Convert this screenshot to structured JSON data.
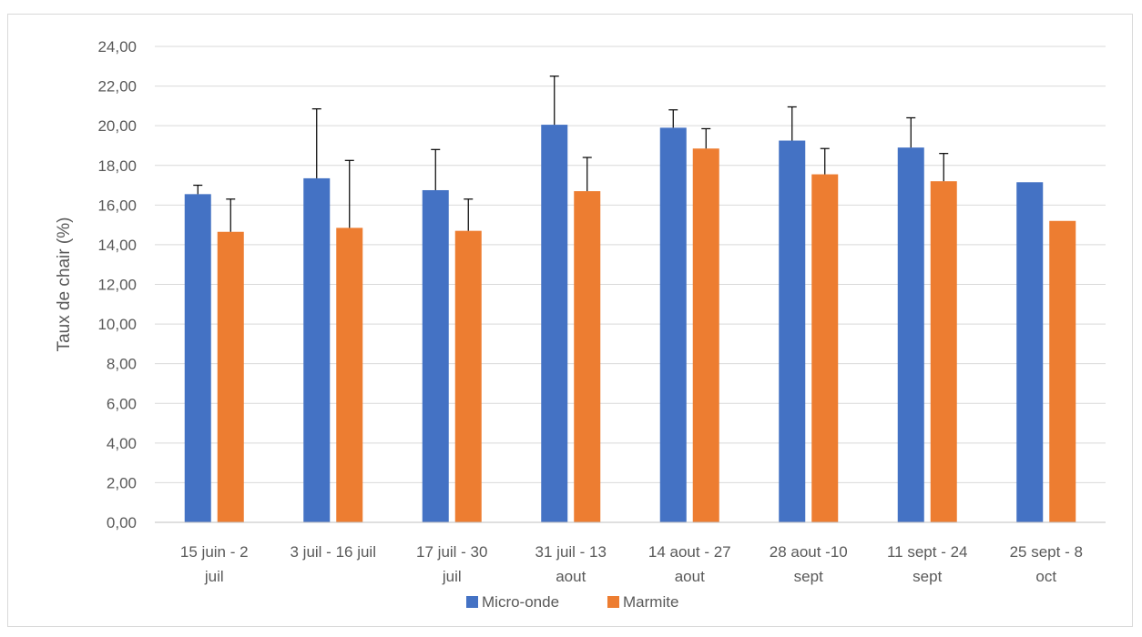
{
  "chart_data": {
    "type": "bar",
    "title": "",
    "xlabel": "",
    "ylabel": "Taux de chair (%)",
    "ylim": [
      0,
      24
    ],
    "ytick_step": 2,
    "ytick_labels": [
      "0,00",
      "2,00",
      "4,00",
      "6,00",
      "8,00",
      "10,00",
      "12,00",
      "14,00",
      "16,00",
      "18,00",
      "20,00",
      "22,00",
      "24,00"
    ],
    "grid": "horizontal",
    "legend_position": "bottom",
    "categories": [
      [
        "15 juin - 2",
        "juil"
      ],
      [
        "3 juil - 16 juil"
      ],
      [
        "17 juil - 30",
        "juil"
      ],
      [
        "31 juil - 13",
        "aout"
      ],
      [
        "14 aout - 27",
        "aout"
      ],
      [
        "28 aout -10",
        "sept"
      ],
      [
        "11 sept - 24",
        "sept"
      ],
      [
        "25 sept - 8",
        "oct"
      ]
    ],
    "series": [
      {
        "name": "Micro-onde",
        "color": "#4472c4",
        "values": [
          16.55,
          17.35,
          16.75,
          20.05,
          19.9,
          19.25,
          18.9,
          17.15
        ],
        "error_plus": [
          0.45,
          3.5,
          2.05,
          2.45,
          0.9,
          1.7,
          1.5,
          null
        ]
      },
      {
        "name": "Marmite",
        "color": "#ed7d31",
        "values": [
          14.65,
          14.85,
          14.7,
          16.7,
          18.85,
          17.55,
          17.2,
          15.2
        ],
        "error_plus": [
          1.65,
          3.4,
          1.6,
          1.7,
          1.0,
          1.3,
          1.4,
          null
        ]
      }
    ]
  }
}
